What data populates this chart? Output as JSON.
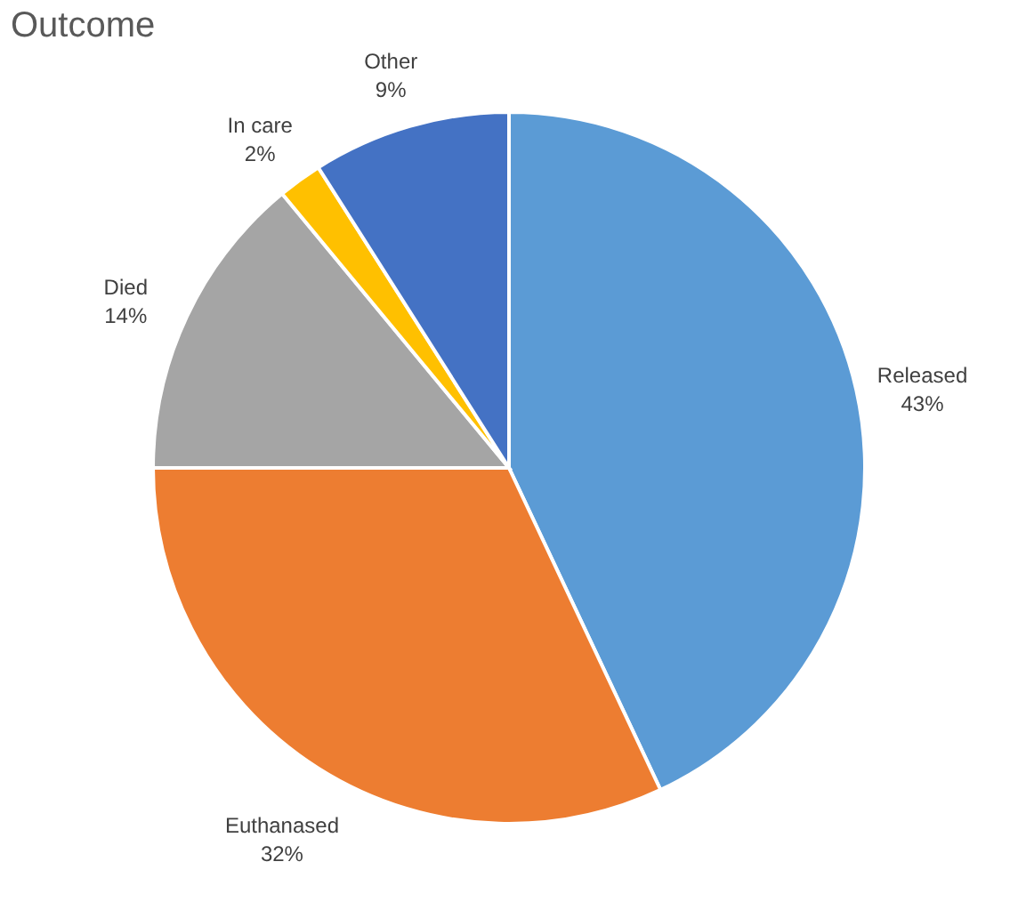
{
  "chart_data": {
    "type": "pie",
    "title": "Outcome",
    "categories": [
      "Released",
      "Euthanased",
      "Died",
      "In care",
      "Other"
    ],
    "values": [
      43,
      32,
      14,
      2,
      9
    ],
    "colors": [
      "#5b9bd5",
      "#ed7d31",
      "#a5a5a5",
      "#ffc000",
      "#4472c4"
    ],
    "value_labels": [
      "43%",
      "32%",
      "14%",
      "2%",
      "9%"
    ],
    "legend": false
  }
}
